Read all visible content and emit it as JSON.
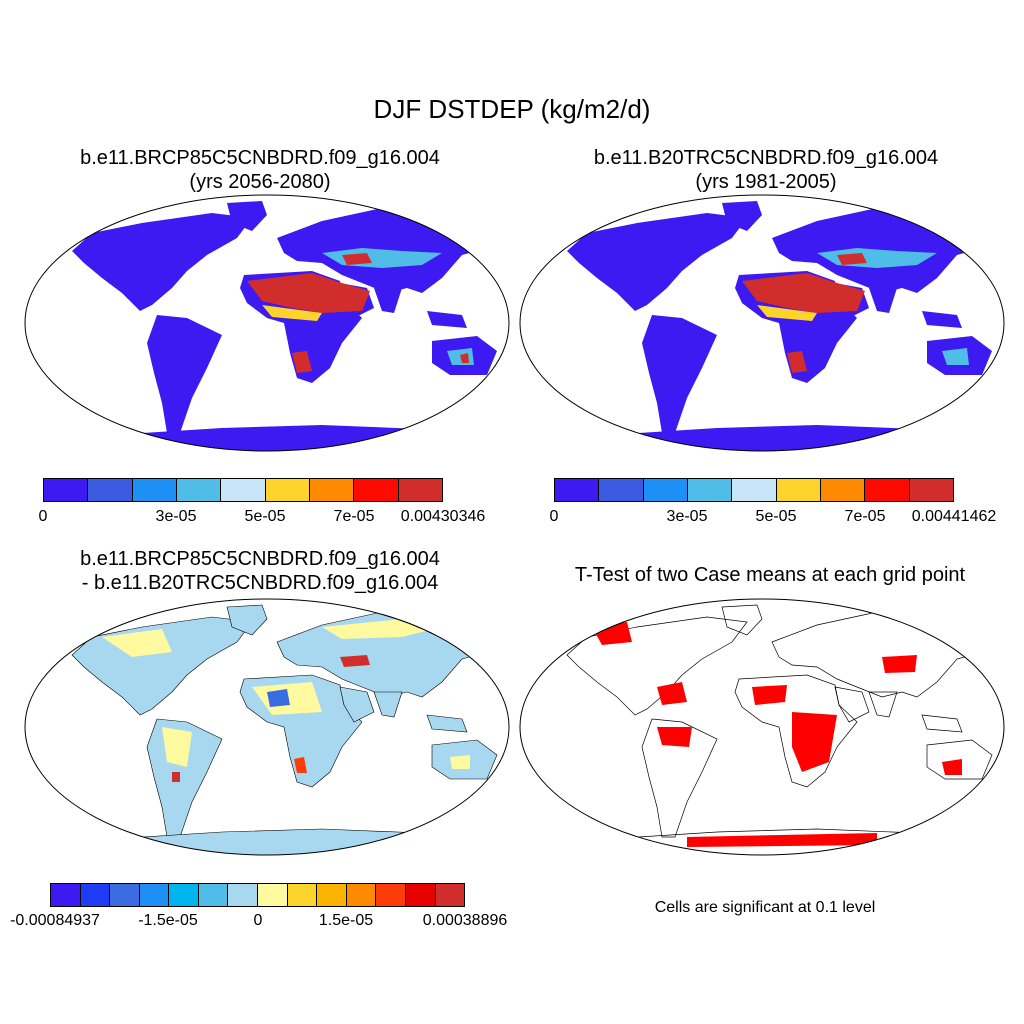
{
  "title": "DJF DSTDEP (kg/m2/d)",
  "panels": [
    {
      "title_line1": "b.e11.BRCP85C5CNBDRD.f09_g16.004",
      "title_line2": "(yrs 2056-2080)",
      "colorbar": {
        "colors": [
          "#3d19f2",
          "#3a5ae0",
          "#1e90f5",
          "#50bde8",
          "#c8e6f8",
          "#fdd42b",
          "#fd8a00",
          "#fd0a00",
          "#d22d2d"
        ],
        "labels": [
          "0",
          "3e-05",
          "5e-05",
          "7e-05",
          "0.00430346"
        ]
      }
    },
    {
      "title_line1": "b.e11.B20TRC5CNBDRD.f09_g16.004",
      "title_line2": "(yrs 1981-2005)",
      "colorbar": {
        "colors": [
          "#3d19f2",
          "#3a5ae0",
          "#1e90f5",
          "#50bde8",
          "#c8e6f8",
          "#fdd42b",
          "#fd8a00",
          "#fd0a00",
          "#d22d2d"
        ],
        "labels": [
          "0",
          "3e-05",
          "5e-05",
          "7e-05",
          "0.00441462"
        ]
      }
    },
    {
      "title_line1": "b.e11.BRCP85C5CNBDRD.f09_g16.004",
      "title_line2": "- b.e11.B20TRC5CNBDRD.f09_g16.004",
      "colorbar": {
        "colors": [
          "#3d19f2",
          "#1e3cf5",
          "#3a6ee0",
          "#1e90f5",
          "#00b4f0",
          "#50bde8",
          "#a8d8f0",
          "#fff9a0",
          "#fdd42b",
          "#fdb400",
          "#fd8a00",
          "#fd3c0a",
          "#e60000",
          "#d22d2d"
        ],
        "labels": [
          "-0.00084937",
          "-1.5e-05",
          "0",
          "1.5e-05",
          "0.00038896"
        ]
      }
    },
    {
      "title_line1": "T-Test of two Case means at each grid point",
      "note": "Cells are significant at 0.1 level"
    }
  ],
  "colors": {
    "land_base": "#3d19f2",
    "dust_high": "#d22d2d",
    "diff_base": "#a8d8f0",
    "diff_pos": "#fff9a0",
    "signif": "#ff0000"
  }
}
